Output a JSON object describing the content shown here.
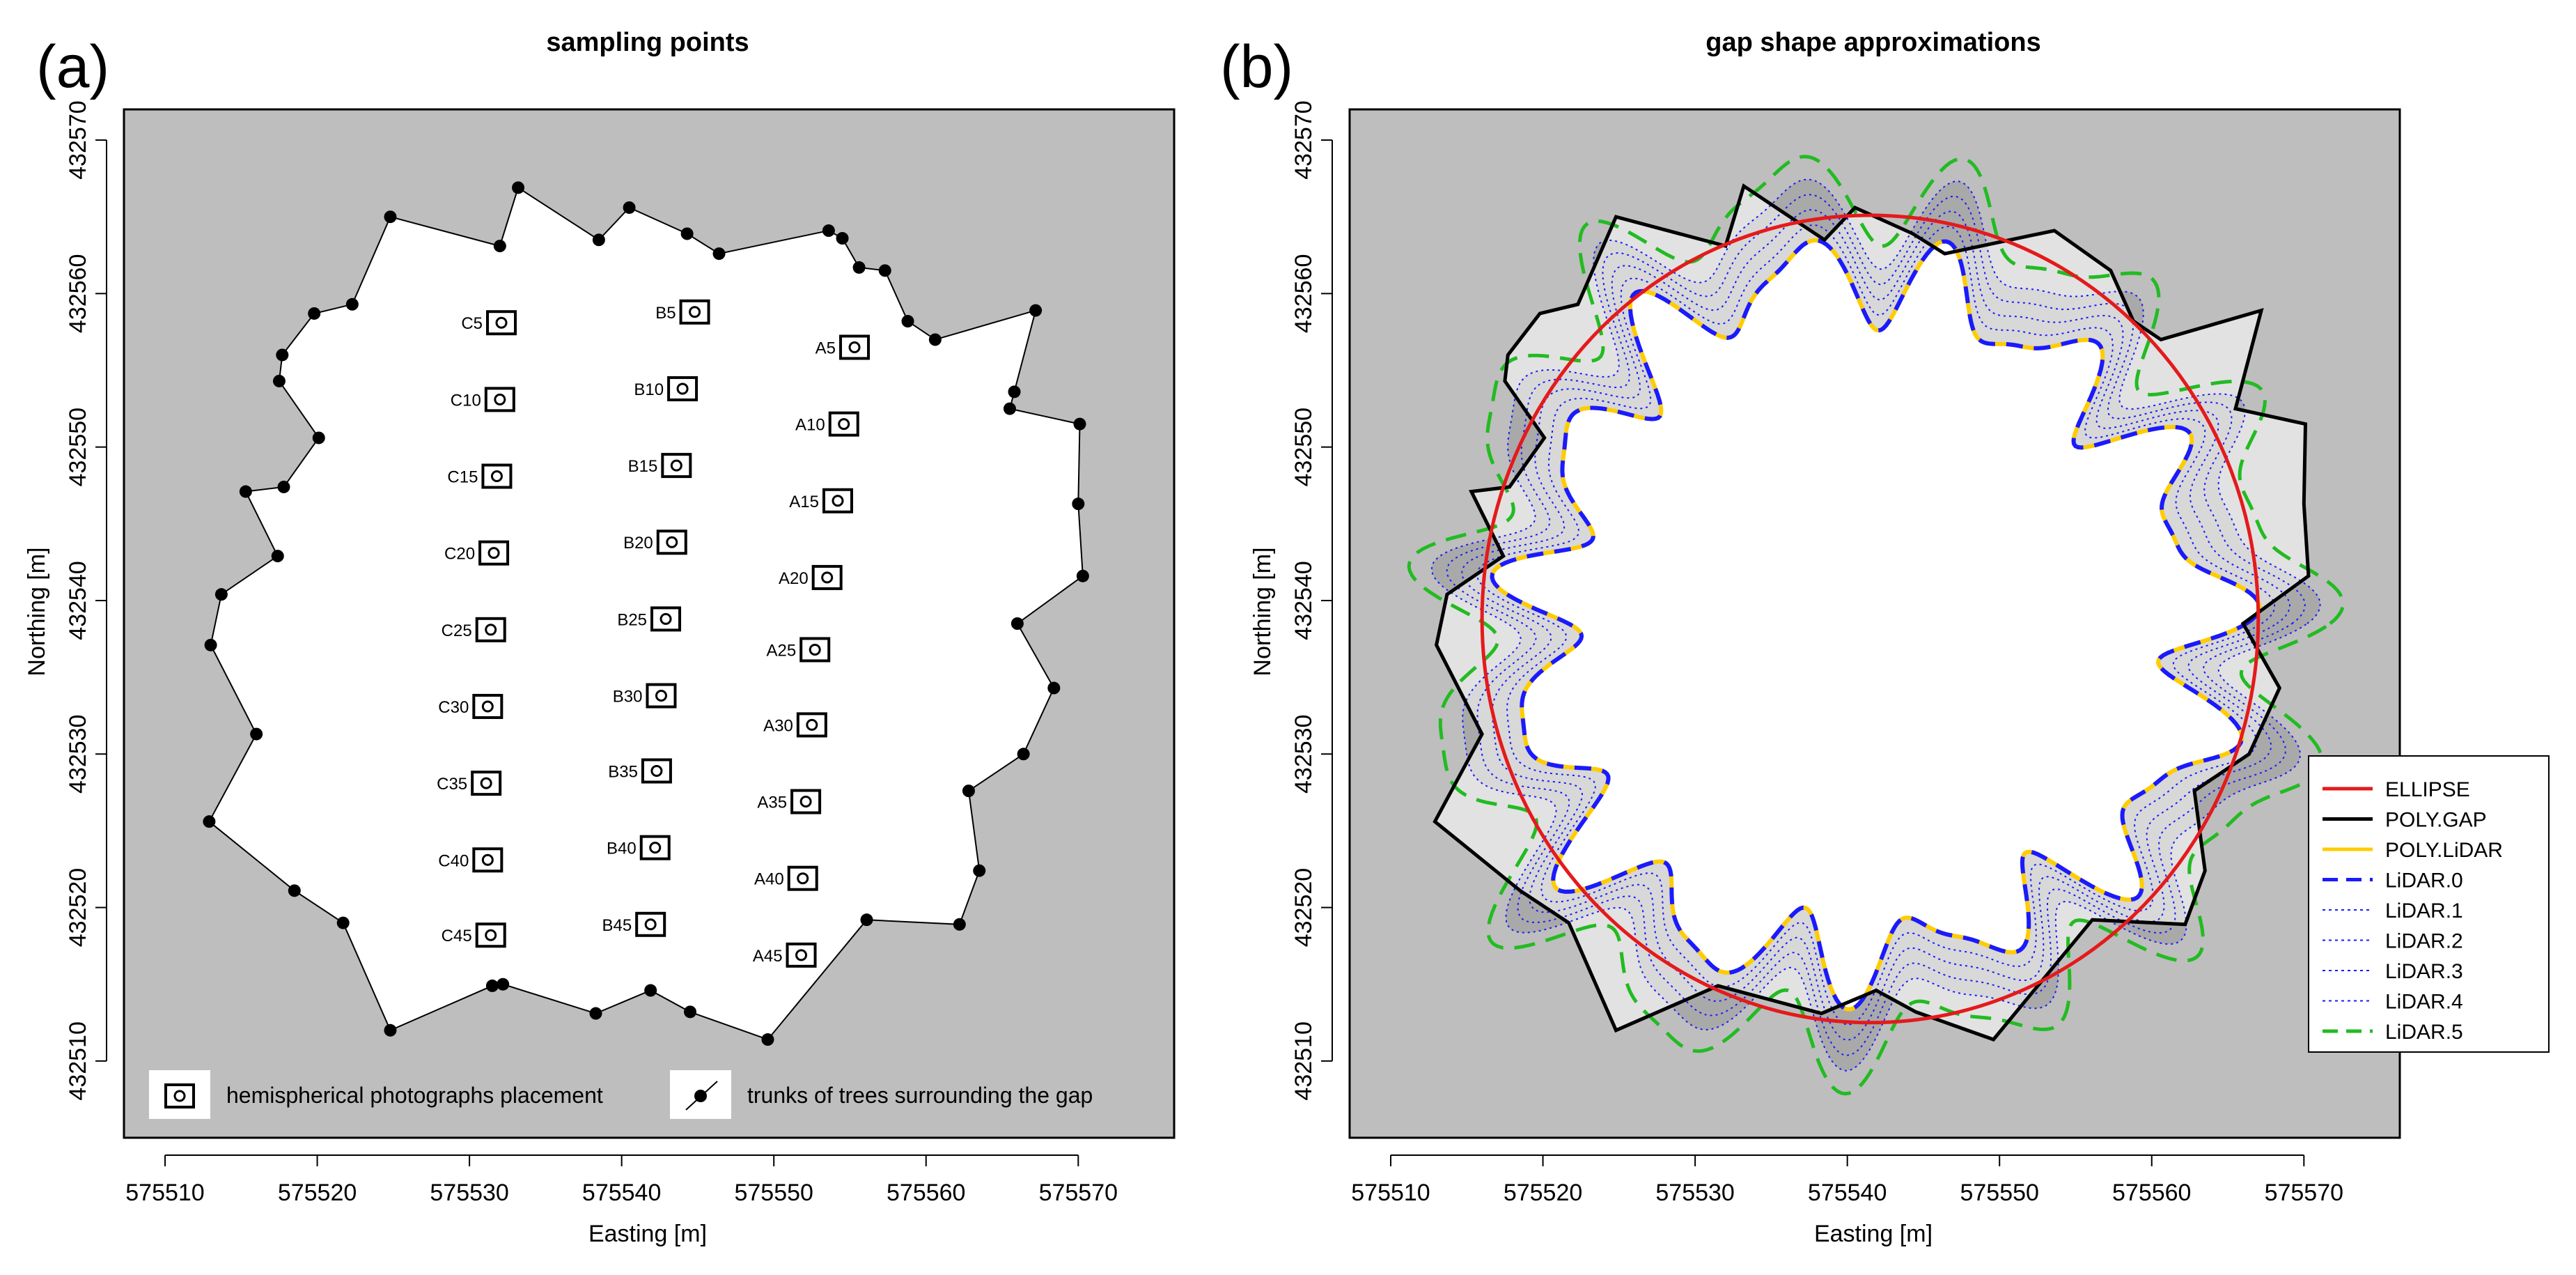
{
  "chart_data": [
    {
      "type": "scatter",
      "panel_label": "(a)",
      "title": "sampling points",
      "xlabel": "Easting [m]",
      "ylabel": "Northing [m]",
      "xlim": [
        575507.3,
        575576.3
      ],
      "ylim": [
        432505,
        432572
      ],
      "xticks": [
        575510,
        575520,
        575530,
        575540,
        575550,
        575560,
        575570
      ],
      "yticks": [
        432510,
        432520,
        432530,
        432540,
        432550,
        432560,
        432570
      ],
      "tick_labels_x": [
        "575510",
        "575520",
        "575530",
        "575540",
        "575550",
        "575560",
        "575570"
      ],
      "tick_labels_y": [
        "432510",
        "432520",
        "432530",
        "432540",
        "432550",
        "432560",
        "432570"
      ],
      "background": "#bebebe",
      "gap_fill": "#ffffff",
      "trees": [
        [
          575533.2,
          432566.9
        ],
        [
          575532.0,
          432563.1
        ],
        [
          575524.8,
          432565.0
        ],
        [
          575522.3,
          432559.3
        ],
        [
          575519.8,
          432558.7
        ],
        [
          575517.7,
          432556.0
        ],
        [
          575517.5,
          432554.3
        ],
        [
          575520.1,
          432550.6
        ],
        [
          575517.8,
          432547.4
        ],
        [
          575515.3,
          432547.1
        ],
        [
          575517.4,
          432542.9
        ],
        [
          575513.7,
          432540.4
        ],
        [
          575513.0,
          432537.1
        ],
        [
          575516.0,
          432531.3
        ],
        [
          575512.9,
          432525.6
        ],
        [
          575518.5,
          432521.1
        ],
        [
          575521.7,
          432519.0
        ],
        [
          575524.8,
          432512.0
        ],
        [
          575531.5,
          432514.9
        ],
        [
          575532.2,
          432515.0
        ],
        [
          575538.3,
          432513.1
        ],
        [
          575541.9,
          432514.6
        ],
        [
          575544.5,
          432513.2
        ],
        [
          575549.6,
          432511.4
        ],
        [
          575556.1,
          432519.2
        ],
        [
          575562.2,
          432518.9
        ],
        [
          575563.5,
          432522.4
        ],
        [
          575562.8,
          432527.6
        ],
        [
          575566.4,
          432530.0
        ],
        [
          575568.4,
          432534.3
        ],
        [
          575566.0,
          432538.5
        ],
        [
          575570.3,
          432541.6
        ],
        [
          575570.0,
          432546.3
        ],
        [
          575570.1,
          432551.5
        ],
        [
          575565.5,
          432552.5
        ],
        [
          575565.8,
          432553.6
        ],
        [
          575567.2,
          432558.9
        ],
        [
          575560.6,
          432557.0
        ],
        [
          575558.8,
          432558.2
        ],
        [
          575557.3,
          432561.5
        ],
        [
          575555.6,
          432561.7
        ],
        [
          575554.5,
          432563.6
        ],
        [
          575553.6,
          432564.1
        ],
        [
          575546.4,
          432562.6
        ],
        [
          575544.3,
          432563.9
        ],
        [
          575540.5,
          432565.6
        ],
        [
          575538.5,
          432563.5
        ]
      ],
      "photos": [
        {
          "label": "A5",
          "x": 575555.3,
          "y": 432556.5
        },
        {
          "label": "A10",
          "x": 575554.6,
          "y": 432551.5
        },
        {
          "label": "A15",
          "x": 575554.2,
          "y": 432546.5
        },
        {
          "label": "A20",
          "x": 575553.5,
          "y": 432541.5
        },
        {
          "label": "A25",
          "x": 575552.7,
          "y": 432536.8
        },
        {
          "label": "A30",
          "x": 575552.5,
          "y": 432531.9
        },
        {
          "label": "A35",
          "x": 575552.1,
          "y": 432526.9
        },
        {
          "label": "A40",
          "x": 575551.9,
          "y": 432521.9
        },
        {
          "label": "A45",
          "x": 575551.8,
          "y": 432516.9
        },
        {
          "label": "B5",
          "x": 575544.8,
          "y": 432558.8
        },
        {
          "label": "B10",
          "x": 575544.0,
          "y": 432553.8
        },
        {
          "label": "B15",
          "x": 575543.6,
          "y": 432548.8
        },
        {
          "label": "B20",
          "x": 575543.3,
          "y": 432543.8
        },
        {
          "label": "B25",
          "x": 575542.9,
          "y": 432538.8
        },
        {
          "label": "B30",
          "x": 575542.6,
          "y": 432533.8
        },
        {
          "label": "B35",
          "x": 575542.3,
          "y": 432528.9
        },
        {
          "label": "B40",
          "x": 575542.2,
          "y": 432523.9
        },
        {
          "label": "B45",
          "x": 575541.9,
          "y": 432518.9
        },
        {
          "label": "C5",
          "x": 575532.1,
          "y": 432558.1
        },
        {
          "label": "C10",
          "x": 575532.0,
          "y": 432553.1
        },
        {
          "label": "C15",
          "x": 575531.8,
          "y": 432548.1
        },
        {
          "label": "C20",
          "x": 575531.6,
          "y": 432543.1
        },
        {
          "label": "C25",
          "x": 575531.4,
          "y": 432538.1
        },
        {
          "label": "C30",
          "x": 575531.2,
          "y": 432533.1
        },
        {
          "label": "C35",
          "x": 575531.1,
          "y": 432528.1
        },
        {
          "label": "C40",
          "x": 575531.2,
          "y": 432523.1
        },
        {
          "label": "C45",
          "x": 575531.4,
          "y": 432518.2
        }
      ],
      "legend": {
        "photo_label": "hemispherical photographs placement",
        "tree_label": "trunks of trees  surrounding the gap",
        "placement": "bottom"
      }
    },
    {
      "type": "line",
      "panel_label": "(b)",
      "title": "gap shape approximations",
      "xlabel": "Easting [m]",
      "ylabel": "Northing [m]",
      "xlim": [
        575507.3,
        575576.3
      ],
      "ylim": [
        432505,
        432572
      ],
      "xticks": [
        575510,
        575520,
        575530,
        575540,
        575550,
        575560,
        575570
      ],
      "yticks": [
        432510,
        432520,
        432530,
        432540,
        432550,
        432560,
        432570
      ],
      "tick_labels_x": [
        "575510",
        "575520",
        "575530",
        "575540",
        "575550",
        "575560",
        "575570"
      ],
      "tick_labels_y": [
        "432510",
        "432520",
        "432530",
        "432540",
        "432550",
        "432560",
        "432570"
      ],
      "background": "#bebebe",
      "ellipse": {
        "cx": 575541.5,
        "cy": 432538.8,
        "rx": 25.5,
        "ry": 26.3,
        "color": "#e41a1c"
      },
      "poly_gap": [
        [
          575533.2,
          432567.0
        ],
        [
          575532.0,
          432563.1
        ],
        [
          575524.8,
          432565.0
        ],
        [
          575522.3,
          432559.3
        ],
        [
          575519.8,
          432558.7
        ],
        [
          575517.7,
          432556.0
        ],
        [
          575517.5,
          432554.3
        ],
        [
          575520.1,
          432550.6
        ],
        [
          575517.8,
          432547.4
        ],
        [
          575515.3,
          432547.1
        ],
        [
          575517.4,
          432542.9
        ],
        [
          575513.7,
          432540.4
        ],
        [
          575513.0,
          432537.1
        ],
        [
          575516.0,
          432531.3
        ],
        [
          575512.9,
          432525.6
        ],
        [
          575518.5,
          432521.1
        ],
        [
          575521.7,
          432519.0
        ],
        [
          575524.8,
          432512.0
        ],
        [
          575531.5,
          432514.9
        ],
        [
          575538.3,
          432513.1
        ],
        [
          575541.9,
          432514.6
        ],
        [
          575544.5,
          432513.2
        ],
        [
          575549.6,
          432511.4
        ],
        [
          575556.1,
          432519.2
        ],
        [
          575562.2,
          432518.9
        ],
        [
          575563.5,
          432522.4
        ],
        [
          575562.8,
          432527.6
        ],
        [
          575566.4,
          432530.0
        ],
        [
          575568.4,
          432534.3
        ],
        [
          575566.0,
          432538.5
        ],
        [
          575570.3,
          432541.6
        ],
        [
          575570.0,
          432546.3
        ],
        [
          575570.1,
          432551.5
        ],
        [
          575565.5,
          432552.5
        ],
        [
          575565.8,
          432553.6
        ],
        [
          575567.2,
          432558.9
        ],
        [
          575560.6,
          432557.0
        ],
        [
          575558.8,
          432558.2
        ],
        [
          575557.3,
          432561.5
        ],
        [
          575553.6,
          432564.1
        ],
        [
          575546.4,
          432562.6
        ],
        [
          575544.3,
          432563.9
        ],
        [
          575540.5,
          432565.6
        ],
        [
          575538.5,
          432563.5
        ]
      ],
      "lidar": {
        "center": [
          575541.2,
          432538.5
        ],
        "wiggle_k1": 15,
        "wiggle_a1": 0.11,
        "wiggle_k2": 23,
        "wiggle_a2": 0.05,
        "base_shape_k3": 3,
        "base_shape_a3": 0.04,
        "base_radius": 22.2,
        "level_offsets_m": [
          0,
          1,
          2,
          3,
          4,
          5.5
        ]
      },
      "legend": {
        "placement": "right",
        "entries": [
          {
            "label": "ELLIPSE",
            "color": "#e41a1c",
            "style": "solid",
            "width": 5
          },
          {
            "label": "POLY.GAP",
            "color": "#000000",
            "style": "solid",
            "width": 5
          },
          {
            "label": "POLY.LiDAR",
            "color": "#ffcc00",
            "style": "solid",
            "width": 5
          },
          {
            "label": "LiDAR.0",
            "color": "#1a1aff",
            "style": "dashed",
            "width": 5
          },
          {
            "label": "LiDAR.1",
            "color": "#1a1aff",
            "style": "dotted",
            "width": 2
          },
          {
            "label": "LiDAR.2",
            "color": "#1a1aff",
            "style": "dotted",
            "width": 2
          },
          {
            "label": "LiDAR.3",
            "color": "#1a1aff",
            "style": "dotted",
            "width": 2
          },
          {
            "label": "LiDAR.4",
            "color": "#1a1aff",
            "style": "dotted",
            "width": 2
          },
          {
            "label": "LiDAR.5",
            "color": "#22bb22",
            "style": "dashed",
            "width": 5
          }
        ]
      }
    }
  ]
}
